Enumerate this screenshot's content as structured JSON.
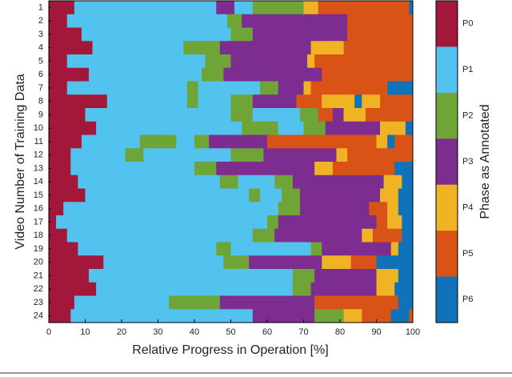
{
  "chart_data": {
    "type": "phase-timeline",
    "x_label": "Relative Progress in Operation [%]",
    "y_label": "Video Number of Training Data",
    "colorbar_label": "Phase as Annotated",
    "xlim": [
      0,
      100
    ],
    "xticks": [
      0,
      10,
      20,
      30,
      40,
      50,
      60,
      70,
      80,
      90,
      100
    ],
    "phases": [
      {
        "name": "P0",
        "color": "#a3173a"
      },
      {
        "name": "P1",
        "color": "#52c2ee"
      },
      {
        "name": "P2",
        "color": "#6ea536"
      },
      {
        "name": "P3",
        "color": "#7d2c8f"
      },
      {
        "name": "P4",
        "color": "#f0b323"
      },
      {
        "name": "P5",
        "color": "#d95316"
      },
      {
        "name": "P6",
        "color": "#1072b8"
      }
    ],
    "categories": [
      "1",
      "2",
      "3",
      "4",
      "5",
      "6",
      "7",
      "8",
      "9",
      "10",
      "11",
      "12",
      "13",
      "14",
      "15",
      "16",
      "17",
      "18",
      "19",
      "20",
      "21",
      "22",
      "23",
      "24"
    ],
    "segments": [
      [
        {
          "phase": "P0",
          "width": 7
        },
        {
          "phase": "P1",
          "width": 39
        },
        {
          "phase": "P3",
          "width": 5
        },
        {
          "phase": "P1",
          "width": 5
        },
        {
          "phase": "P2",
          "width": 14
        },
        {
          "phase": "P4",
          "width": 4
        },
        {
          "phase": "P5",
          "width": 25
        },
        {
          "phase": "P6",
          "width": 1
        }
      ],
      [
        {
          "phase": "P0",
          "width": 5
        },
        {
          "phase": "P1",
          "width": 44
        },
        {
          "phase": "P2",
          "width": 4
        },
        {
          "phase": "P3",
          "width": 29
        },
        {
          "phase": "P5",
          "width": 18
        }
      ],
      [
        {
          "phase": "P0",
          "width": 9
        },
        {
          "phase": "P1",
          "width": 41
        },
        {
          "phase": "P2",
          "width": 6
        },
        {
          "phase": "P3",
          "width": 26
        },
        {
          "phase": "P5",
          "width": 18
        }
      ],
      [
        {
          "phase": "P0",
          "width": 12
        },
        {
          "phase": "P1",
          "width": 25
        },
        {
          "phase": "P2",
          "width": 10
        },
        {
          "phase": "P3",
          "width": 25
        },
        {
          "phase": "P4",
          "width": 9
        },
        {
          "phase": "P5",
          "width": 19
        }
      ],
      [
        {
          "phase": "P0",
          "width": 5
        },
        {
          "phase": "P1",
          "width": 38
        },
        {
          "phase": "P2",
          "width": 7
        },
        {
          "phase": "P3",
          "width": 21
        },
        {
          "phase": "P4",
          "width": 2
        },
        {
          "phase": "P5",
          "width": 27
        }
      ],
      [
        {
          "phase": "P0",
          "width": 11
        },
        {
          "phase": "P1",
          "width": 31
        },
        {
          "phase": "P2",
          "width": 6
        },
        {
          "phase": "P3",
          "width": 27
        },
        {
          "phase": "P5",
          "width": 25
        }
      ],
      [
        {
          "phase": "P0",
          "width": 5
        },
        {
          "phase": "P1",
          "width": 33
        },
        {
          "phase": "P2",
          "width": 3
        },
        {
          "phase": "P1",
          "width": 17
        },
        {
          "phase": "P2",
          "width": 5
        },
        {
          "phase": "P3",
          "width": 7
        },
        {
          "phase": "P4",
          "width": 2
        },
        {
          "phase": "P5",
          "width": 21
        },
        {
          "phase": "P6",
          "width": 7
        }
      ],
      [
        {
          "phase": "P0",
          "width": 16
        },
        {
          "phase": "P1",
          "width": 22
        },
        {
          "phase": "P2",
          "width": 3
        },
        {
          "phase": "P1",
          "width": 9
        },
        {
          "phase": "P2",
          "width": 6
        },
        {
          "phase": "P3",
          "width": 12
        },
        {
          "phase": "P5",
          "width": 7
        },
        {
          "phase": "P4",
          "width": 9
        },
        {
          "phase": "P6",
          "width": 2
        },
        {
          "phase": "P4",
          "width": 5
        },
        {
          "phase": "P5",
          "width": 9
        }
      ],
      [
        {
          "phase": "P0",
          "width": 10
        },
        {
          "phase": "P1",
          "width": 40
        },
        {
          "phase": "P2",
          "width": 6
        },
        {
          "phase": "P1",
          "width": 13
        },
        {
          "phase": "P2",
          "width": 5
        },
        {
          "phase": "P5",
          "width": 4
        },
        {
          "phase": "P3",
          "width": 3
        },
        {
          "phase": "P4",
          "width": 6
        },
        {
          "phase": "P5",
          "width": 13
        }
      ],
      [
        {
          "phase": "P0",
          "width": 13
        },
        {
          "phase": "P1",
          "width": 40
        },
        {
          "phase": "P2",
          "width": 10
        },
        {
          "phase": "P1",
          "width": 7
        },
        {
          "phase": "P2",
          "width": 6
        },
        {
          "phase": "P3",
          "width": 15
        },
        {
          "phase": "P4",
          "width": 7
        },
        {
          "phase": "P6",
          "width": 2
        }
      ],
      [
        {
          "phase": "P0",
          "width": 9
        },
        {
          "phase": "P1",
          "width": 16
        },
        {
          "phase": "P2",
          "width": 10
        },
        {
          "phase": "P1",
          "width": 5
        },
        {
          "phase": "P2",
          "width": 4
        },
        {
          "phase": "P3",
          "width": 16
        },
        {
          "phase": "P5",
          "width": 30
        },
        {
          "phase": "P4",
          "width": 3
        },
        {
          "phase": "P6",
          "width": 2
        },
        {
          "phase": "P5",
          "width": 5
        }
      ],
      [
        {
          "phase": "P0",
          "width": 6
        },
        {
          "phase": "P1",
          "width": 15
        },
        {
          "phase": "P2",
          "width": 5
        },
        {
          "phase": "P1",
          "width": 24
        },
        {
          "phase": "P2",
          "width": 9
        },
        {
          "phase": "P3",
          "width": 20
        },
        {
          "phase": "P4",
          "width": 3
        },
        {
          "phase": "P5",
          "width": 18
        }
      ],
      [
        {
          "phase": "P0",
          "width": 6
        },
        {
          "phase": "P1",
          "width": 34
        },
        {
          "phase": "P2",
          "width": 6
        },
        {
          "phase": "P3",
          "width": 27
        },
        {
          "phase": "P4",
          "width": 5
        },
        {
          "phase": "P5",
          "width": 17
        },
        {
          "phase": "P6",
          "width": 5
        }
      ],
      [
        {
          "phase": "P0",
          "width": 8
        },
        {
          "phase": "P1",
          "width": 39
        },
        {
          "phase": "P2",
          "width": 5
        },
        {
          "phase": "P1",
          "width": 10
        },
        {
          "phase": "P2",
          "width": 5
        },
        {
          "phase": "P3",
          "width": 25
        },
        {
          "phase": "P4",
          "width": 5
        },
        {
          "phase": "P6",
          "width": 3
        }
      ],
      [
        {
          "phase": "P0",
          "width": 10
        },
        {
          "phase": "P1",
          "width": 45
        },
        {
          "phase": "P2",
          "width": 3
        },
        {
          "phase": "P1",
          "width": 6
        },
        {
          "phase": "P2",
          "width": 5
        },
        {
          "phase": "P3",
          "width": 22
        },
        {
          "phase": "P4",
          "width": 5
        },
        {
          "phase": "P6",
          "width": 4
        }
      ],
      [
        {
          "phase": "P0",
          "width": 4
        },
        {
          "phase": "P1",
          "width": 59
        },
        {
          "phase": "P2",
          "width": 6
        },
        {
          "phase": "P3",
          "width": 19
        },
        {
          "phase": "P5",
          "width": 5
        },
        {
          "phase": "P4",
          "width": 3
        },
        {
          "phase": "P6",
          "width": 4
        }
      ],
      [
        {
          "phase": "P0",
          "width": 2
        },
        {
          "phase": "P1",
          "width": 58
        },
        {
          "phase": "P2",
          "width": 3
        },
        {
          "phase": "P3",
          "width": 27
        },
        {
          "phase": "P5",
          "width": 3
        },
        {
          "phase": "P4",
          "width": 4
        },
        {
          "phase": "P6",
          "width": 3
        }
      ],
      [
        {
          "phase": "P0",
          "width": 5
        },
        {
          "phase": "P1",
          "width": 51
        },
        {
          "phase": "P2",
          "width": 6
        },
        {
          "phase": "P3",
          "width": 24
        },
        {
          "phase": "P4",
          "width": 3
        },
        {
          "phase": "P5",
          "width": 8
        },
        {
          "phase": "P6",
          "width": 3
        }
      ],
      [
        {
          "phase": "P0",
          "width": 8
        },
        {
          "phase": "P1",
          "width": 38
        },
        {
          "phase": "P2",
          "width": 4
        },
        {
          "phase": "P1",
          "width": 22
        },
        {
          "phase": "P2",
          "width": 3
        },
        {
          "phase": "P3",
          "width": 19
        },
        {
          "phase": "P4",
          "width": 2
        },
        {
          "phase": "P6",
          "width": 4
        }
      ],
      [
        {
          "phase": "P0",
          "width": 15
        },
        {
          "phase": "P1",
          "width": 33
        },
        {
          "phase": "P2",
          "width": 7
        },
        {
          "phase": "P3",
          "width": 20
        },
        {
          "phase": "P4",
          "width": 8
        },
        {
          "phase": "P5",
          "width": 7
        },
        {
          "phase": "P6",
          "width": 10
        }
      ],
      [
        {
          "phase": "P0",
          "width": 11
        },
        {
          "phase": "P1",
          "width": 56
        },
        {
          "phase": "P2",
          "width": 6
        },
        {
          "phase": "P3",
          "width": 17
        },
        {
          "phase": "P4",
          "width": 6
        },
        {
          "phase": "P6",
          "width": 4
        }
      ],
      [
        {
          "phase": "P0",
          "width": 13
        },
        {
          "phase": "P1",
          "width": 54
        },
        {
          "phase": "P2",
          "width": 5
        },
        {
          "phase": "P3",
          "width": 18
        },
        {
          "phase": "P4",
          "width": 5
        },
        {
          "phase": "P6",
          "width": 5
        }
      ],
      [
        {
          "phase": "P0",
          "width": 7
        },
        {
          "phase": "P1",
          "width": 26
        },
        {
          "phase": "P2",
          "width": 14
        },
        {
          "phase": "P3",
          "width": 26
        },
        {
          "phase": "P5",
          "width": 23
        },
        {
          "phase": "P6",
          "width": 4
        }
      ],
      [
        {
          "phase": "P0",
          "width": 6
        },
        {
          "phase": "P1",
          "width": 50
        },
        {
          "phase": "P3",
          "width": 17
        },
        {
          "phase": "P2",
          "width": 8
        },
        {
          "phase": "P4",
          "width": 5
        },
        {
          "phase": "P5",
          "width": 8
        },
        {
          "phase": "P6",
          "width": 5
        },
        {
          "phase": "P5",
          "width": 1
        }
      ]
    ]
  }
}
